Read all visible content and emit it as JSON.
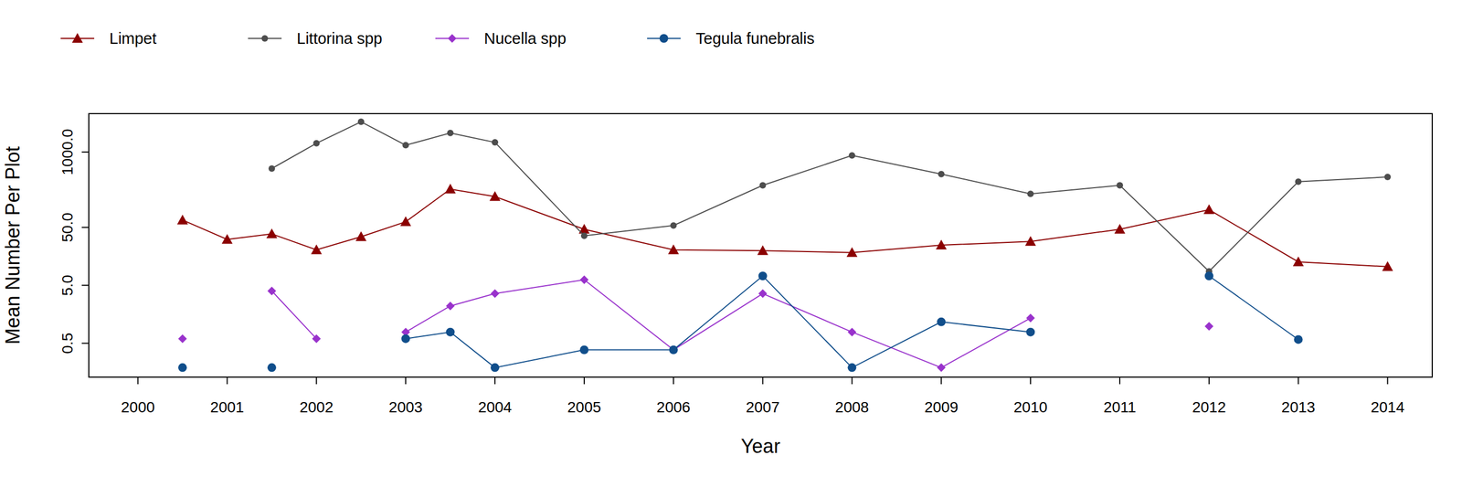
{
  "chart_data": {
    "type": "line",
    "log": "y",
    "grid": false,
    "legend": "top-left",
    "x_label": "Year",
    "y_label": "Mean Number Per Plot",
    "x": [
      2000.5,
      2001,
      2001.5,
      2002,
      2002.5,
      2003,
      2003.5,
      2004,
      2005,
      2006,
      2007,
      2008,
      2009,
      2010,
      2011,
      2012,
      2013,
      2014
    ],
    "xlim": [
      1999.45,
      2014.5
    ],
    "xticks": [
      2000,
      2001,
      2002,
      2003,
      2004,
      2005,
      2006,
      2007,
      2008,
      2009,
      2010,
      2011,
      2012,
      2013,
      2014
    ],
    "ylim": [
      0.13,
      4600
    ],
    "yticks": [
      0.5,
      {
        "value": 5,
        "label": "5.0"
      },
      {
        "value": 50,
        "label": "50.0"
      },
      {
        "value": 1000,
        "label": "1000.0"
      }
    ],
    "series": [
      {
        "name": "Limpet",
        "color": "#8b0000",
        "marker": "triangle",
        "values": [
          67,
          31,
          38.6,
          20.5,
          34.5,
          62.5,
          229,
          170,
          46.4,
          20.5,
          19.8,
          18.4,
          24.7,
          28.6,
          46.4,
          101,
          12.7,
          10.5
        ]
      },
      {
        "name": "Littorina spp",
        "color": "#4d4d4d",
        "marker": "circle",
        "values": [
          null,
          null,
          519,
          1415,
          3325,
          1312,
          2127,
          1468,
          35.8,
          53.9,
          266,
          873,
          415,
          190,
          266,
          8.7,
          308,
          371
        ]
      },
      {
        "name": "Nucella spp",
        "color": "#9932cc",
        "marker": "diamond",
        "values": [
          0.6,
          null,
          4.0,
          0.6,
          null,
          0.78,
          2.2,
          3.6,
          6.25,
          0.385,
          3.6,
          0.78,
          0.19,
          1.36,
          null,
          0.98,
          null,
          null
        ]
      },
      {
        "name": "Tegula funebralis",
        "color": "#104e8b",
        "marker": "circle",
        "values": [
          0.19,
          null,
          0.19,
          null,
          null,
          0.6,
          0.78,
          0.19,
          0.385,
          0.385,
          7.25,
          0.19,
          1.17,
          0.78,
          null,
          7.25,
          0.58,
          null
        ]
      }
    ]
  }
}
